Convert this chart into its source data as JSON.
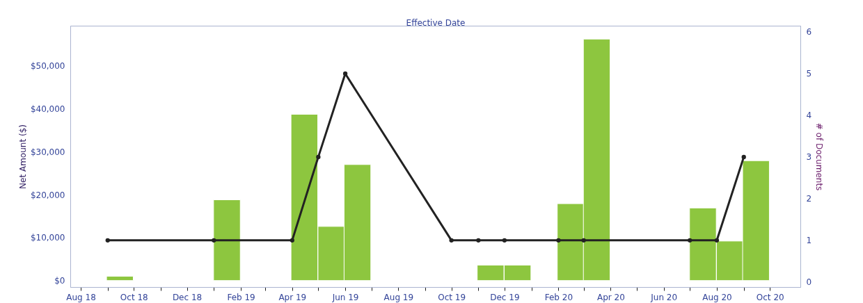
{
  "chart_data": {
    "type": "bar",
    "xlabel": "Effective Date",
    "ylabel": "Net Amount ($)",
    "y2label": "# of Documents",
    "xlim": [
      "2018-07-24",
      "2020-11-01"
    ],
    "xticks": [
      {
        "value": "2018-08",
        "label": "Aug 18"
      },
      {
        "value": "2018-09",
        "label": null
      },
      {
        "value": "2018-10",
        "label": "Oct 18"
      },
      {
        "value": "2018-11",
        "label": null
      },
      {
        "value": "2018-12",
        "label": "Dec 18"
      },
      {
        "value": "2019-01",
        "label": null
      },
      {
        "value": "2019-02",
        "label": "Feb 19"
      },
      {
        "value": "2019-03",
        "label": null
      },
      {
        "value": "2019-04",
        "label": "Apr 19"
      },
      {
        "value": "2019-05",
        "label": null
      },
      {
        "value": "2019-06",
        "label": "Jun 19"
      },
      {
        "value": "2019-07",
        "label": null
      },
      {
        "value": "2019-08",
        "label": "Aug 19"
      },
      {
        "value": "2019-09",
        "label": null
      },
      {
        "value": "2019-10",
        "label": "Oct 19"
      },
      {
        "value": "2019-11",
        "label": null
      },
      {
        "value": "2019-12",
        "label": "Dec 19"
      },
      {
        "value": "2020-01",
        "label": null
      },
      {
        "value": "2020-02",
        "label": "Feb 20"
      },
      {
        "value": "2020-03",
        "label": null
      },
      {
        "value": "2020-04",
        "label": "Apr 20"
      },
      {
        "value": "2020-05",
        "label": null
      },
      {
        "value": "2020-06",
        "label": "Jun 20"
      },
      {
        "value": "2020-07",
        "label": null
      },
      {
        "value": "2020-08",
        "label": "Aug 20"
      },
      {
        "value": "2020-09",
        "label": null
      },
      {
        "value": "2020-10",
        "label": "Oct 20"
      }
    ],
    "ylim": [
      -1500,
      59300
    ],
    "yticks": [
      {
        "value": 0,
        "label": "$0"
      },
      {
        "value": 10000,
        "label": "$10,000"
      },
      {
        "value": 20000,
        "label": "$20,000"
      },
      {
        "value": 30000,
        "label": "$30,000"
      },
      {
        "value": 40000,
        "label": "$40,000"
      },
      {
        "value": 50000,
        "label": "$50,000"
      }
    ],
    "y2lim": [
      -0.12,
      6.15
    ],
    "y2ticks": [
      0,
      1,
      2,
      3,
      4,
      5,
      6
    ],
    "grid": false,
    "marker": "circle",
    "line_style": "solid",
    "series": [
      {
        "color": "#8dc63f",
        "x": [
          "2018-09-15",
          "2019-01-16",
          "2019-04-15",
          "2019-05-16",
          "2019-06-15",
          "2019-11-15",
          "2019-12-16",
          "2020-02-15",
          "2020-03-16",
          "2020-07-16",
          "2020-08-16",
          "2020-09-15"
        ],
        "values": [
          1000,
          18800,
          38700,
          12600,
          27000,
          3600,
          3600,
          17900,
          56200,
          16900,
          9200,
          27900
        ]
      },
      {
        "type": "line",
        "axis": "y2",
        "color": "#222222",
        "x": [
          "2018-09",
          "2019-01",
          "2019-04",
          "2019-05",
          "2019-06",
          "2019-10",
          "2019-11",
          "2019-12",
          "2020-02",
          "2020-03",
          "2020-07",
          "2020-08",
          "2020-09"
        ],
        "values": [
          1,
          1,
          1,
          3,
          5,
          1,
          1,
          1,
          1,
          1,
          1,
          1,
          3
        ]
      }
    ]
  }
}
